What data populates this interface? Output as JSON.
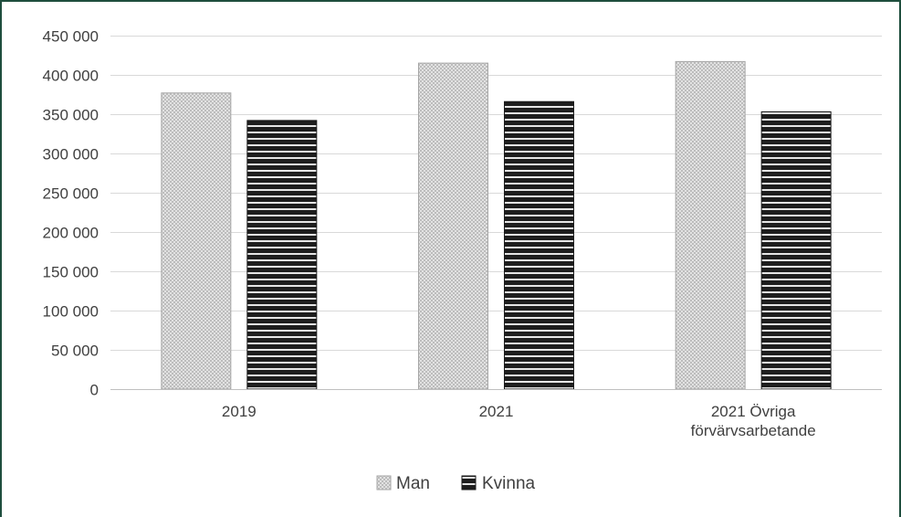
{
  "chart_data": {
    "type": "bar",
    "categories": [
      [
        "2019"
      ],
      [
        "2021"
      ],
      [
        "2021 Övriga",
        "förvärvsarbetande"
      ]
    ],
    "series": [
      {
        "name": "Man",
        "values": [
          377000,
          415000,
          417000
        ],
        "color": "#d0d0d0",
        "pattern": "checker"
      },
      {
        "name": "Kvinna",
        "values": [
          342000,
          366000,
          353000
        ],
        "color": "#2a2a2a",
        "pattern": "horizontal-stripes"
      }
    ],
    "ylim": [
      0,
      450000
    ],
    "yticks": [
      0,
      50000,
      100000,
      150000,
      200000,
      250000,
      300000,
      350000,
      400000,
      450000
    ],
    "ytick_labels": [
      "0",
      "50 000",
      "100 000",
      "150 000",
      "200 000",
      "250 000",
      "300 000",
      "350 000",
      "400 000",
      "450 000"
    ],
    "grid": true,
    "legend_position": "bottom-center",
    "title": "",
    "xlabel": "",
    "ylabel": ""
  }
}
